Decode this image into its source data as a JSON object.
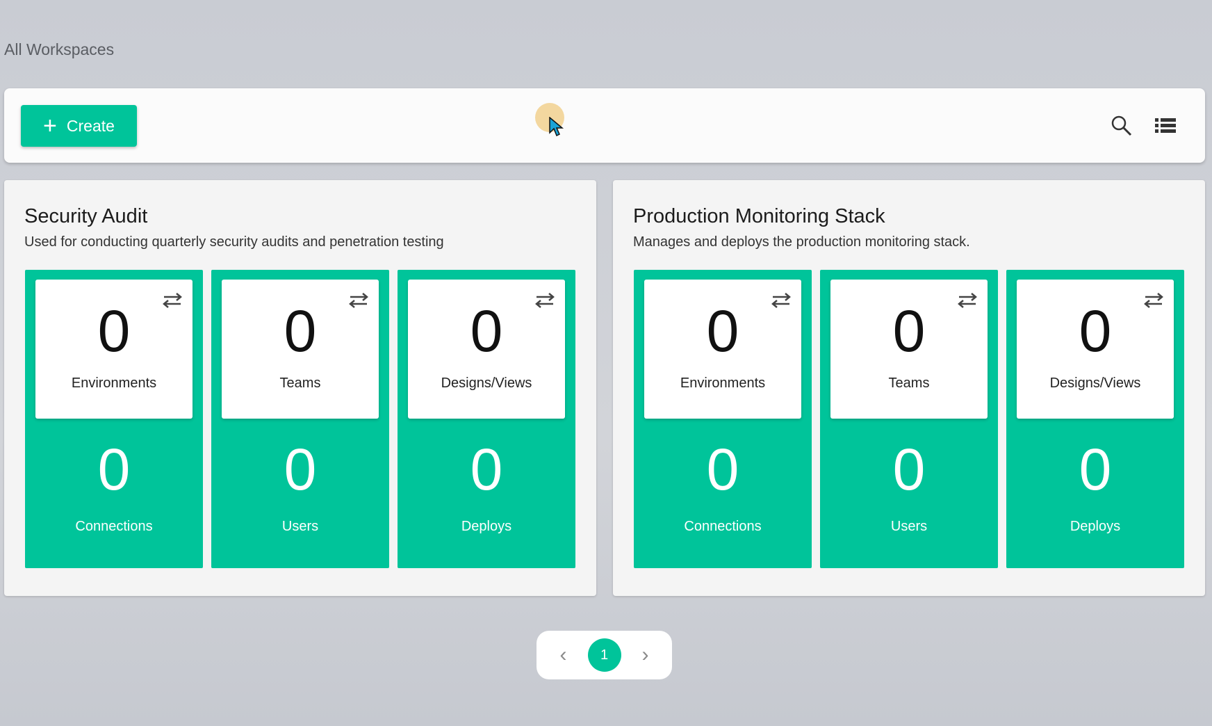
{
  "breadcrumb": "All Workspaces",
  "toolbar": {
    "create_label": "Create",
    "icons": [
      "search-icon",
      "list-view-icon"
    ]
  },
  "colors": {
    "accent": "#00c49a"
  },
  "workspaces": [
    {
      "title": "Security Audit",
      "description": "Used for conducting quarterly security audits and penetration testing",
      "stats": [
        {
          "top_value": "0",
          "top_label": "Environments",
          "bottom_value": "0",
          "bottom_label": "Connections"
        },
        {
          "top_value": "0",
          "top_label": "Teams",
          "bottom_value": "0",
          "bottom_label": "Users"
        },
        {
          "top_value": "0",
          "top_label": "Designs/Views",
          "bottom_value": "0",
          "bottom_label": "Deploys"
        }
      ]
    },
    {
      "title": "Production Monitoring Stack",
      "description": "Manages and deploys the production monitoring stack.",
      "stats": [
        {
          "top_value": "0",
          "top_label": "Environments",
          "bottom_value": "0",
          "bottom_label": "Connections"
        },
        {
          "top_value": "0",
          "top_label": "Teams",
          "bottom_value": "0",
          "bottom_label": "Users"
        },
        {
          "top_value": "0",
          "top_label": "Designs/Views",
          "bottom_value": "0",
          "bottom_label": "Deploys"
        }
      ]
    }
  ],
  "pagination": {
    "current_page": "1"
  }
}
